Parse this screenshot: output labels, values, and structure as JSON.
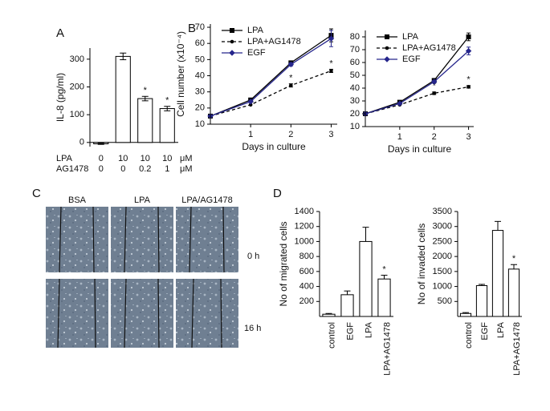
{
  "panel_labels": [
    "A",
    "B",
    "C",
    "D"
  ],
  "images": {
    "columns": [
      "BSA",
      "LPA",
      "LPA/AG1478"
    ],
    "rows": [
      "0 h",
      "16 h"
    ]
  },
  "chart_data": [
    {
      "type": "bar",
      "y_label": "IL-8 (pg/ml)",
      "condition_rows": [
        {
          "name": "LPA",
          "labels": [
            "0",
            "10",
            "10",
            "10"
          ],
          "unit": "μM"
        },
        {
          "name": "AG1478",
          "labels": [
            "0",
            "0",
            "0.2",
            "1"
          ],
          "unit": "μM"
        }
      ],
      "values": [
        -5,
        310,
        158,
        122
      ],
      "errors": [
        2,
        12,
        8,
        8
      ],
      "error_bars": "both",
      "markers": [
        null,
        null,
        "*",
        "*"
      ],
      "color": "#ffffff",
      "ylim": [
        -15,
        340
      ],
      "yticks": [
        0,
        100,
        200,
        300
      ]
    },
    {
      "type": "line",
      "y_label": "Cell number (x10⁻⁴)",
      "x_label": "Days in culture",
      "x": [
        0,
        1,
        2,
        3
      ],
      "xlim": [
        0,
        3.15
      ],
      "xticks": [
        1,
        2,
        3
      ],
      "ylim": [
        10,
        72
      ],
      "yticks": [
        10,
        20,
        30,
        40,
        50,
        60,
        70
      ],
      "legend": "upper left",
      "series": [
        {
          "name": "LPA",
          "color": "#000000",
          "dash": false,
          "marker": "square",
          "values": [
            15,
            25,
            48,
            65
          ],
          "errors": [
            null,
            1,
            1,
            4
          ],
          "markers": [
            null,
            null,
            null,
            null
          ]
        },
        {
          "name": "LPA+AG1478",
          "color": "#000000",
          "dash": true,
          "marker": "circle",
          "values": [
            15,
            22,
            34,
            43
          ],
          "errors": [
            null,
            null,
            1,
            1
          ],
          "markers": [
            null,
            null,
            "*",
            "*"
          ]
        },
        {
          "name": "EGF",
          "color": "#26268c",
          "dash": false,
          "marker": "diamond",
          "values": [
            15,
            24,
            47,
            63
          ],
          "errors": [
            null,
            null,
            1,
            5
          ],
          "markers": [
            null,
            null,
            null,
            null
          ]
        }
      ]
    },
    {
      "type": "line",
      "x_label": "Days in culture",
      "x": [
        0,
        1,
        2,
        3
      ],
      "xlim": [
        0,
        3.15
      ],
      "xticks": [
        1,
        2,
        3
      ],
      "ylim": [
        10,
        85
      ],
      "yticks": [
        10,
        20,
        30,
        40,
        50,
        60,
        70,
        80
      ],
      "legend": "upper left",
      "series": [
        {
          "name": "LPA",
          "color": "#000000",
          "dash": false,
          "marker": "square",
          "values": [
            20,
            29,
            46,
            80
          ],
          "errors": [
            null,
            null,
            1,
            3
          ],
          "markers": [
            null,
            null,
            null,
            null
          ]
        },
        {
          "name": "LPA+AG1478",
          "color": "#000000",
          "dash": true,
          "marker": "circle",
          "values": [
            20,
            27,
            36,
            41
          ],
          "errors": [
            null,
            null,
            1,
            1
          ],
          "markers": [
            null,
            null,
            "*",
            "*"
          ]
        },
        {
          "name": "EGF",
          "color": "#26268c",
          "dash": false,
          "marker": "diamond",
          "values": [
            20,
            28,
            45,
            69
          ],
          "errors": [
            null,
            null,
            1,
            3
          ],
          "markers": [
            null,
            null,
            null,
            null
          ]
        }
      ]
    },
    {
      "type": "bar",
      "y_label": "No of migrated cells",
      "categories": [
        "control",
        "EGF",
        "LPA",
        "LPA+AG1478"
      ],
      "values": [
        30,
        290,
        1000,
        500
      ],
      "errors": [
        10,
        50,
        190,
        50
      ],
      "error_bars": "upper",
      "markers": [
        null,
        null,
        null,
        "*"
      ],
      "color": "#ffffff",
      "ylim": [
        0,
        1400
      ],
      "yticks": [
        200,
        400,
        600,
        800,
        1000,
        1200,
        1400
      ]
    },
    {
      "type": "bar",
      "y_label": "No of invaded cells",
      "categories": [
        "control",
        "EGF",
        "LPA",
        "LPA+AG1478"
      ],
      "values": [
        100,
        1030,
        2870,
        1580
      ],
      "errors": [
        30,
        40,
        300,
        150
      ],
      "error_bars": "upper",
      "markers": [
        null,
        null,
        null,
        "*"
      ],
      "color": "#ffffff",
      "ylim": [
        0,
        3500
      ],
      "yticks": [
        500,
        1000,
        1500,
        2000,
        2500,
        3000,
        3500
      ]
    }
  ]
}
